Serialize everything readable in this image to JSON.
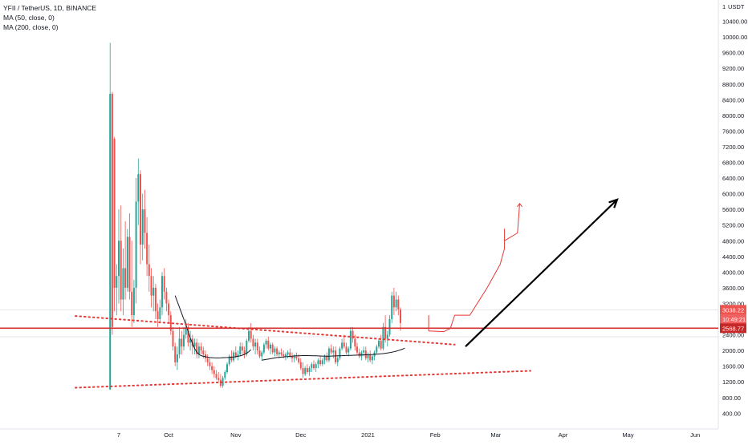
{
  "header": {
    "symbol": "YFII / TetherUS, 1D, BINANCE",
    "indicator_1": "MA (50, close, 0)",
    "indicator_2": "MA (200, close, 0)"
  },
  "colors": {
    "up": "#26a69a",
    "down": "#ef5350",
    "ma50": "#131722",
    "drawing_red": "#e53935",
    "arrow": "#000000",
    "axis_text": "#131722",
    "tag_red": "#ef5350",
    "level_line": "#d32f2f"
  },
  "chart_data": {
    "type": "candlestick",
    "y_axis": {
      "currency_label": "USDT",
      "currency_value": "1",
      "range": [
        0,
        10800
      ],
      "tick_labels": [
        "10400.00",
        "10000.00",
        "9600.00",
        "9200.00",
        "8800.00",
        "8400.00",
        "8000.00",
        "7600.00",
        "7200.00",
        "6800.00",
        "6400.00",
        "6000.00",
        "5600.00",
        "5200.00",
        "4800.00",
        "4400.00",
        "4000.00",
        "3600.00",
        "3200.00",
        "2400.00",
        "2000.00",
        "1600.00",
        "1200.00",
        "800.00",
        "400.00"
      ],
      "tick_values": [
        10400,
        10000,
        9600,
        9200,
        8800,
        8400,
        8000,
        7600,
        7200,
        6800,
        6400,
        6000,
        5600,
        5200,
        4800,
        4400,
        4000,
        3600,
        3200,
        2400,
        2000,
        1600,
        1200,
        800,
        400
      ]
    },
    "x_axis": {
      "tick_labels": [
        "7",
        "Oct",
        "Nov",
        "Dec",
        "2021",
        "Feb",
        "Mar",
        "Apr",
        "May",
        "Jun"
      ],
      "tick_day_index": [
        0,
        23,
        54,
        84,
        115,
        146,
        174,
        205,
        235,
        266
      ]
    },
    "price_tags": [
      {
        "label": "3038.22",
        "value": 3038
      },
      {
        "label": "10:49:21",
        "value": 2800
      },
      {
        "label": "2568.77",
        "value": 2569
      }
    ],
    "horizontal_level": 2569,
    "series": [
      {
        "kind": "ohlc_daily",
        "start_day_index": -4,
        "candles": [
          [
            1000,
            9850,
            1000,
            8550
          ],
          [
            8550,
            8600,
            2400,
            2600
          ],
          [
            7400,
            7450,
            3000,
            3600
          ],
          [
            3600,
            4200,
            2900,
            3900
          ],
          [
            3900,
            5600,
            3200,
            4800
          ],
          [
            4800,
            5700,
            3000,
            3300
          ],
          [
            3300,
            4600,
            2900,
            4100
          ],
          [
            4100,
            5300,
            3300,
            3600
          ],
          [
            3600,
            5100,
            3500,
            4900
          ],
          [
            4900,
            5500,
            3300,
            3500
          ],
          [
            3500,
            4800,
            2600,
            2900
          ],
          [
            2900,
            3800,
            2700,
            3600
          ],
          [
            3600,
            6400,
            3200,
            5800
          ],
          [
            5800,
            6900,
            5200,
            6500
          ],
          [
            6500,
            6600,
            4200,
            4700
          ],
          [
            4700,
            6000,
            4300,
            5600
          ],
          [
            5600,
            6100,
            4600,
            5000
          ],
          [
            5000,
            5400,
            3900,
            4200
          ],
          [
            4200,
            4700,
            3500,
            3900
          ],
          [
            3900,
            4100,
            3100,
            3400
          ],
          [
            3400,
            3900,
            3000,
            3600
          ],
          [
            3600,
            3700,
            2800,
            3000
          ],
          [
            3000,
            3200,
            2600,
            2800
          ],
          [
            2800,
            3300,
            2700,
            3100
          ],
          [
            3100,
            4000,
            2900,
            3900
          ],
          [
            3900,
            4100,
            3300,
            3500
          ],
          [
            3500,
            3600,
            3000,
            3200
          ],
          [
            3200,
            3300,
            2700,
            2900
          ],
          [
            2900,
            3000,
            2400,
            2500
          ],
          [
            2500,
            2600,
            2000,
            2100
          ],
          [
            2100,
            2200,
            1600,
            1700
          ],
          [
            1700,
            2100,
            1500,
            1900
          ],
          [
            1900,
            2600,
            1800,
            2300
          ],
          [
            2300,
            2500,
            1900,
            2100
          ],
          [
            2100,
            2600,
            2000,
            2400
          ],
          [
            2400,
            2800,
            2300,
            2600
          ],
          [
            2600,
            2700,
            2100,
            2200
          ],
          [
            2200,
            2500,
            2000,
            2300
          ],
          [
            2300,
            2400,
            1900,
            2100
          ],
          [
            2100,
            2300,
            1900,
            2200
          ],
          [
            2200,
            2300,
            1800,
            1900
          ],
          [
            1900,
            2200,
            1800,
            2100
          ],
          [
            2100,
            2200,
            1900,
            2000
          ],
          [
            2000,
            2100,
            1800,
            1900
          ],
          [
            1900,
            2000,
            1700,
            1800
          ],
          [
            1800,
            1900,
            1600,
            1700
          ],
          [
            1700,
            1800,
            1500,
            1600
          ],
          [
            1600,
            1700,
            1400,
            1500
          ],
          [
            1500,
            1600,
            1300,
            1400
          ],
          [
            1400,
            1500,
            1250,
            1300
          ],
          [
            1300,
            1450,
            1200,
            1250
          ],
          [
            1250,
            1400,
            1050,
            1100
          ],
          [
            1100,
            1350,
            1050,
            1300
          ],
          [
            1300,
            1500,
            1250,
            1450
          ],
          [
            1450,
            1700,
            1400,
            1650
          ],
          [
            1650,
            1900,
            1600,
            1850
          ],
          [
            1850,
            2000,
            1700,
            1750
          ],
          [
            1750,
            2000,
            1700,
            1950
          ],
          [
            1950,
            2100,
            1800,
            1850
          ],
          [
            1850,
            2000,
            1750,
            1900
          ],
          [
            1900,
            2200,
            1850,
            2100
          ],
          [
            2100,
            2200,
            1900,
            2000
          ],
          [
            2000,
            2100,
            1800,
            1900
          ],
          [
            1900,
            2300,
            1850,
            2250
          ],
          [
            2250,
            2600,
            2200,
            2500
          ],
          [
            2500,
            2700,
            2200,
            2300
          ],
          [
            2300,
            2400,
            2000,
            2100
          ],
          [
            2100,
            2300,
            1900,
            2200
          ],
          [
            2200,
            2300,
            1900,
            2000
          ],
          [
            2000,
            2100,
            1800,
            1850
          ],
          [
            1850,
            2000,
            1750,
            1950
          ],
          [
            1950,
            2200,
            1900,
            2150
          ],
          [
            2150,
            2300,
            2050,
            2250
          ],
          [
            2250,
            2350,
            2000,
            2050
          ],
          [
            2050,
            2200,
            1900,
            2150
          ],
          [
            2150,
            2200,
            1900,
            1950
          ],
          [
            1950,
            2100,
            1850,
            2050
          ],
          [
            2050,
            2100,
            1850,
            1900
          ],
          [
            1900,
            2000,
            1800,
            1950
          ],
          [
            1950,
            2050,
            1850,
            1900
          ],
          [
            1900,
            2000,
            1800,
            1850
          ],
          [
            1850,
            1950,
            1750,
            1900
          ],
          [
            1900,
            2000,
            1800,
            1950
          ],
          [
            1950,
            2050,
            1800,
            1850
          ],
          [
            1850,
            1950,
            1700,
            1800
          ],
          [
            1800,
            1900,
            1700,
            1850
          ],
          [
            1850,
            1950,
            1750,
            1800
          ],
          [
            1800,
            1900,
            1650,
            1700
          ],
          [
            1700,
            1800,
            1500,
            1550
          ],
          [
            1550,
            1700,
            1300,
            1400
          ],
          [
            1400,
            1600,
            1350,
            1550
          ],
          [
            1550,
            1650,
            1400,
            1450
          ],
          [
            1450,
            1600,
            1350,
            1550
          ],
          [
            1550,
            1700,
            1450,
            1650
          ],
          [
            1650,
            1750,
            1500,
            1550
          ],
          [
            1550,
            1700,
            1450,
            1650
          ],
          [
            1650,
            1800,
            1550,
            1750
          ],
          [
            1750,
            1850,
            1600,
            1650
          ],
          [
            1650,
            1800,
            1600,
            1750
          ],
          [
            1750,
            1900,
            1650,
            1850
          ],
          [
            1850,
            1950,
            1700,
            1750
          ],
          [
            1750,
            2100,
            1700,
            2050
          ],
          [
            2050,
            2150,
            1900,
            1950
          ],
          [
            1950,
            2100,
            1800,
            2000
          ],
          [
            2000,
            2100,
            1650,
            1700
          ],
          [
            1700,
            1850,
            1600,
            1800
          ],
          [
            1800,
            2100,
            1750,
            2050
          ],
          [
            2050,
            2300,
            2000,
            2200
          ],
          [
            2200,
            2400,
            2050,
            2100
          ],
          [
            2100,
            2200,
            1900,
            1950
          ],
          [
            1950,
            2100,
            1850,
            2050
          ],
          [
            2050,
            2600,
            2000,
            2500
          ],
          [
            2500,
            2600,
            2200,
            2300
          ],
          [
            2300,
            2400,
            2000,
            2100
          ],
          [
            2100,
            2200,
            1900,
            1950
          ],
          [
            1950,
            2050,
            1800,
            1850
          ],
          [
            1850,
            2000,
            1750,
            1950
          ],
          [
            1950,
            2100,
            1850,
            2000
          ],
          [
            2000,
            2100,
            1750,
            1800
          ],
          [
            1800,
            1950,
            1700,
            1900
          ],
          [
            1900,
            2000,
            1700,
            1750
          ],
          [
            1750,
            1900,
            1650,
            1850
          ],
          [
            1850,
            2000,
            1750,
            1950
          ],
          [
            1950,
            2150,
            1900,
            2100
          ],
          [
            2100,
            2300,
            2050,
            2250
          ],
          [
            2250,
            2400,
            2000,
            2050
          ],
          [
            2050,
            2700,
            2000,
            2600
          ],
          [
            2600,
            2900,
            2200,
            2300
          ],
          [
            2300,
            2500,
            2100,
            2400
          ],
          [
            2400,
            2900,
            2350,
            2800
          ],
          [
            2800,
            3500,
            2700,
            3400
          ],
          [
            3400,
            3600,
            2900,
            3100
          ],
          [
            3100,
            3500,
            3000,
            3300
          ],
          [
            3300,
            3400,
            2900,
            3050
          ],
          [
            3050,
            3100,
            2500,
            2700
          ]
        ]
      },
      {
        "kind": "moving_average",
        "name": "MA (50, close, 0)",
        "start_day_index": 26,
        "values": [
          3400,
          3250,
          3100,
          2950,
          2800,
          2650,
          2480,
          2320,
          2180,
          2050,
          1960,
          1900,
          1870,
          1850,
          1840,
          1830,
          1820,
          1815,
          1812,
          1810,
          1810,
          1812,
          1815,
          1818,
          1820,
          1825,
          1830,
          1835,
          1840,
          1850,
          1860,
          1880,
          1900,
          1930,
          1970,
          2020
        ]
      },
      {
        "kind": "moving_average",
        "name": "MA (50, close, 0) continued",
        "start_day_index": 66,
        "values": [
          1750,
          1760,
          1770,
          1780,
          1790,
          1800,
          1810,
          1820,
          1825,
          1830,
          1835,
          1840,
          1845,
          1850,
          1855,
          1860,
          1862,
          1865,
          1868,
          1870,
          1870,
          1870,
          1868,
          1866,
          1864,
          1862,
          1860,
          1858,
          1857,
          1856,
          1855,
          1855,
          1856,
          1858,
          1860,
          1862,
          1865,
          1868,
          1870,
          1872,
          1874,
          1876,
          1878,
          1880,
          1882,
          1884,
          1886,
          1888,
          1890,
          1892,
          1895,
          1898,
          1902,
          1906,
          1910,
          1915,
          1920,
          1928,
          1936,
          1945,
          1955,
          1968,
          1982,
          1998,
          2015,
          2035,
          2060
        ]
      }
    ],
    "annotations": {
      "upper_trendline": [
        [
          -20,
          2880
        ],
        [
          155,
          2150
        ]
      ],
      "lower_trendline": [
        [
          -20,
          1050
        ],
        [
          190,
          1480
        ]
      ],
      "projection_arrow": [
        [
          160,
          2100
        ],
        [
          230,
          5850
        ]
      ],
      "projected_path": [
        [
          143,
          2900
        ],
        [
          143,
          2500
        ],
        [
          150,
          2480
        ],
        [
          153,
          2560
        ],
        [
          155,
          2900
        ],
        [
          162,
          2900
        ],
        [
          170,
          3600
        ],
        [
          176,
          4200
        ],
        [
          178,
          4600
        ],
        [
          178,
          5100
        ],
        [
          178,
          4800
        ],
        [
          184,
          5000
        ],
        [
          185,
          5750
        ]
      ]
    }
  }
}
